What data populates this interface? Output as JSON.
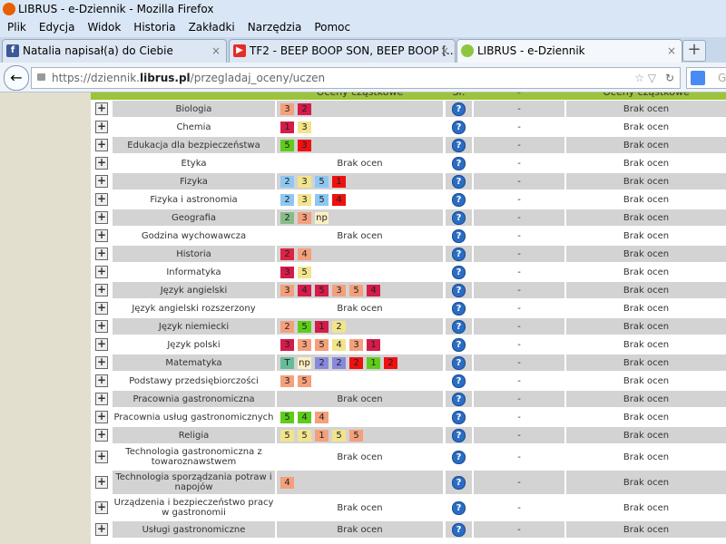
{
  "window": {
    "title": "LIBRUS - e-Dziennik - Mozilla Firefox"
  },
  "menu": [
    "Plik",
    "Edycja",
    "Widok",
    "Historia",
    "Zakładki",
    "Narzędzia",
    "Pomoc"
  ],
  "tabs": [
    {
      "label": "Natalia napisał(a) do Ciebie",
      "icon": "#3b5998",
      "icon_text": "f"
    },
    {
      "label": "TF2 - BEEP BOOP SON, BEEP BOOP [...",
      "icon": "#e52d27",
      "icon_text": "▶"
    },
    {
      "label": "LIBRUS - e-Dziennik",
      "icon": "#8dc63f",
      "icon_text": ""
    }
  ],
  "url": {
    "prefix": "https://dziennik.",
    "domain": "librus.pl",
    "path": "/przegladaj_oceny/uczen"
  },
  "search": {
    "placeholder": "G"
  },
  "table": {
    "headers": [
      "Oceny cząstkowe",
      "Śr.",
      "-",
      "Oceny cząstkowe"
    ],
    "rows": [
      {
        "subject": "Biologia",
        "grades": [
          {
            "text": "3",
            "color": "#f4a07c"
          },
          {
            "text": "2",
            "color": "#d41c4a"
          }
        ],
        "avg": "-",
        "final": "Brak ocen"
      },
      {
        "subject": "Chemia",
        "grades": [
          {
            "text": "1",
            "color": "#d41c4a"
          },
          {
            "text": "3",
            "color": "#f2e48c"
          }
        ],
        "avg": "-",
        "final": "Brak ocen"
      },
      {
        "subject": "Edukacja dla bezpieczeństwa",
        "grades": [
          {
            "text": "5",
            "color": "#5fcc1c"
          },
          {
            "text": "3",
            "color": "#ee1111"
          }
        ],
        "avg": "-",
        "final": "Brak ocen"
      },
      {
        "subject": "Etyka",
        "empty": "Brak ocen",
        "avg": "-",
        "final": "Brak ocen"
      },
      {
        "subject": "Fizyka",
        "grades": [
          {
            "text": "2",
            "color": "#8cc8f2"
          },
          {
            "text": "3",
            "color": "#f2e48c"
          },
          {
            "text": "5",
            "color": "#8cc8f2"
          },
          {
            "text": "1",
            "color": "#ee1111"
          }
        ],
        "avg": "-",
        "final": "Brak ocen"
      },
      {
        "subject": "Fizyka i astronomia",
        "grades": [
          {
            "text": "2",
            "color": "#8cc8f2"
          },
          {
            "text": "3",
            "color": "#f2e48c"
          },
          {
            "text": "5",
            "color": "#8cc8f2"
          },
          {
            "text": "4",
            "color": "#ee1111"
          }
        ],
        "avg": "-",
        "final": "Brak ocen"
      },
      {
        "subject": "Geografia",
        "grades": [
          {
            "text": "2",
            "color": "#88bb88"
          },
          {
            "text": "3",
            "color": "#f4a07c"
          },
          {
            "text": "np",
            "color": "#fff0c4"
          }
        ],
        "avg": "-",
        "final": "Brak ocen"
      },
      {
        "subject": "Godzina wychowawcza",
        "empty": "Brak ocen",
        "avg": "-",
        "final": "Brak ocen"
      },
      {
        "subject": "Historia",
        "grades": [
          {
            "text": "2",
            "color": "#dd2244"
          },
          {
            "text": "4",
            "color": "#f4a07c"
          }
        ],
        "avg": "-",
        "final": "Brak ocen"
      },
      {
        "subject": "Informatyka",
        "grades": [
          {
            "text": "3",
            "color": "#d41c4a"
          },
          {
            "text": "5",
            "color": "#f2e48c"
          }
        ],
        "avg": "-",
        "final": "Brak ocen"
      },
      {
        "subject": "Język angielski",
        "grades": [
          {
            "text": "3",
            "color": "#f4a07c"
          },
          {
            "text": "4",
            "color": "#d41c4a"
          },
          {
            "text": "5",
            "color": "#d41c4a"
          },
          {
            "text": "3",
            "color": "#f4a07c"
          },
          {
            "text": "5",
            "color": "#f4a07c"
          },
          {
            "text": "4",
            "color": "#d41c4a"
          }
        ],
        "avg": "-",
        "final": "Brak ocen"
      },
      {
        "subject": "Język angielski rozszerzony",
        "empty": "Brak ocen",
        "avg": "-",
        "final": "Brak ocen"
      },
      {
        "subject": "Język niemiecki",
        "grades": [
          {
            "text": "2",
            "color": "#f4a07c"
          },
          {
            "text": "5",
            "color": "#5fcc1c"
          },
          {
            "text": "1",
            "color": "#d41c4a"
          },
          {
            "text": "2",
            "color": "#f2e48c"
          }
        ],
        "avg": "-",
        "final": "Brak ocen"
      },
      {
        "subject": "Język polski",
        "grades": [
          {
            "text": "3",
            "color": "#d41c4a"
          },
          {
            "text": "3",
            "color": "#f4a07c"
          },
          {
            "text": "5",
            "color": "#f4a07c"
          },
          {
            "text": "4",
            "color": "#f2e48c"
          },
          {
            "text": "3",
            "color": "#f4a07c"
          },
          {
            "text": "1",
            "color": "#d41c4a"
          }
        ],
        "avg": "-",
        "final": "Brak ocen"
      },
      {
        "subject": "Matematyka",
        "grades": [
          {
            "text": "T",
            "color": "#66bb99"
          },
          {
            "text": "np",
            "color": "#fff0c4"
          },
          {
            "text": "2",
            "color": "#8888dd"
          },
          {
            "text": "2",
            "color": "#8888dd"
          },
          {
            "text": "2",
            "color": "#ee1111"
          },
          {
            "text": "1",
            "color": "#5fcc1c"
          },
          {
            "text": "2",
            "color": "#ee1111"
          }
        ],
        "avg": "-",
        "final": "Brak ocen"
      },
      {
        "subject": "Podstawy przedsiębiorczości",
        "grades": [
          {
            "text": "3",
            "color": "#f4a07c"
          },
          {
            "text": "5",
            "color": "#f4a07c"
          }
        ],
        "avg": "-",
        "final": "Brak ocen"
      },
      {
        "subject": "Pracownia gastronomiczna",
        "empty": "Brak ocen",
        "avg": "-",
        "final": "Brak ocen"
      },
      {
        "subject": "Pracownia usług gastronomicznych",
        "grades": [
          {
            "text": "5",
            "color": "#5fcc1c"
          },
          {
            "text": "4",
            "color": "#5fcc1c"
          },
          {
            "text": "4",
            "color": "#f4a07c"
          }
        ],
        "avg": "-",
        "final": "Brak ocen"
      },
      {
        "subject": "Religia",
        "grades": [
          {
            "text": "5",
            "color": "#f2e48c"
          },
          {
            "text": "5",
            "color": "#f2e48c"
          },
          {
            "text": "1",
            "color": "#f4a07c"
          },
          {
            "text": "5",
            "color": "#f2e48c"
          },
          {
            "text": "5",
            "color": "#f4a07c"
          }
        ],
        "avg": "-",
        "final": "Brak ocen"
      },
      {
        "subject": "Technologia gastronomiczna z towaroznawstwem",
        "empty": "Brak ocen",
        "avg": "-",
        "final": "Brak ocen"
      },
      {
        "subject": "Technologia sporządzania potraw i napojów",
        "grades": [
          {
            "text": "4",
            "color": "#f4a07c"
          }
        ],
        "avg": "-",
        "final": "Brak ocen"
      },
      {
        "subject": "Urządzenia i bezpieczeństwo pracy w gastronomii",
        "empty": "Brak ocen",
        "avg": "-",
        "final": "Brak ocen"
      },
      {
        "subject": "Usługi gastronomiczne",
        "empty": "Brak ocen",
        "avg": "-",
        "final": "Brak ocen"
      }
    ]
  }
}
